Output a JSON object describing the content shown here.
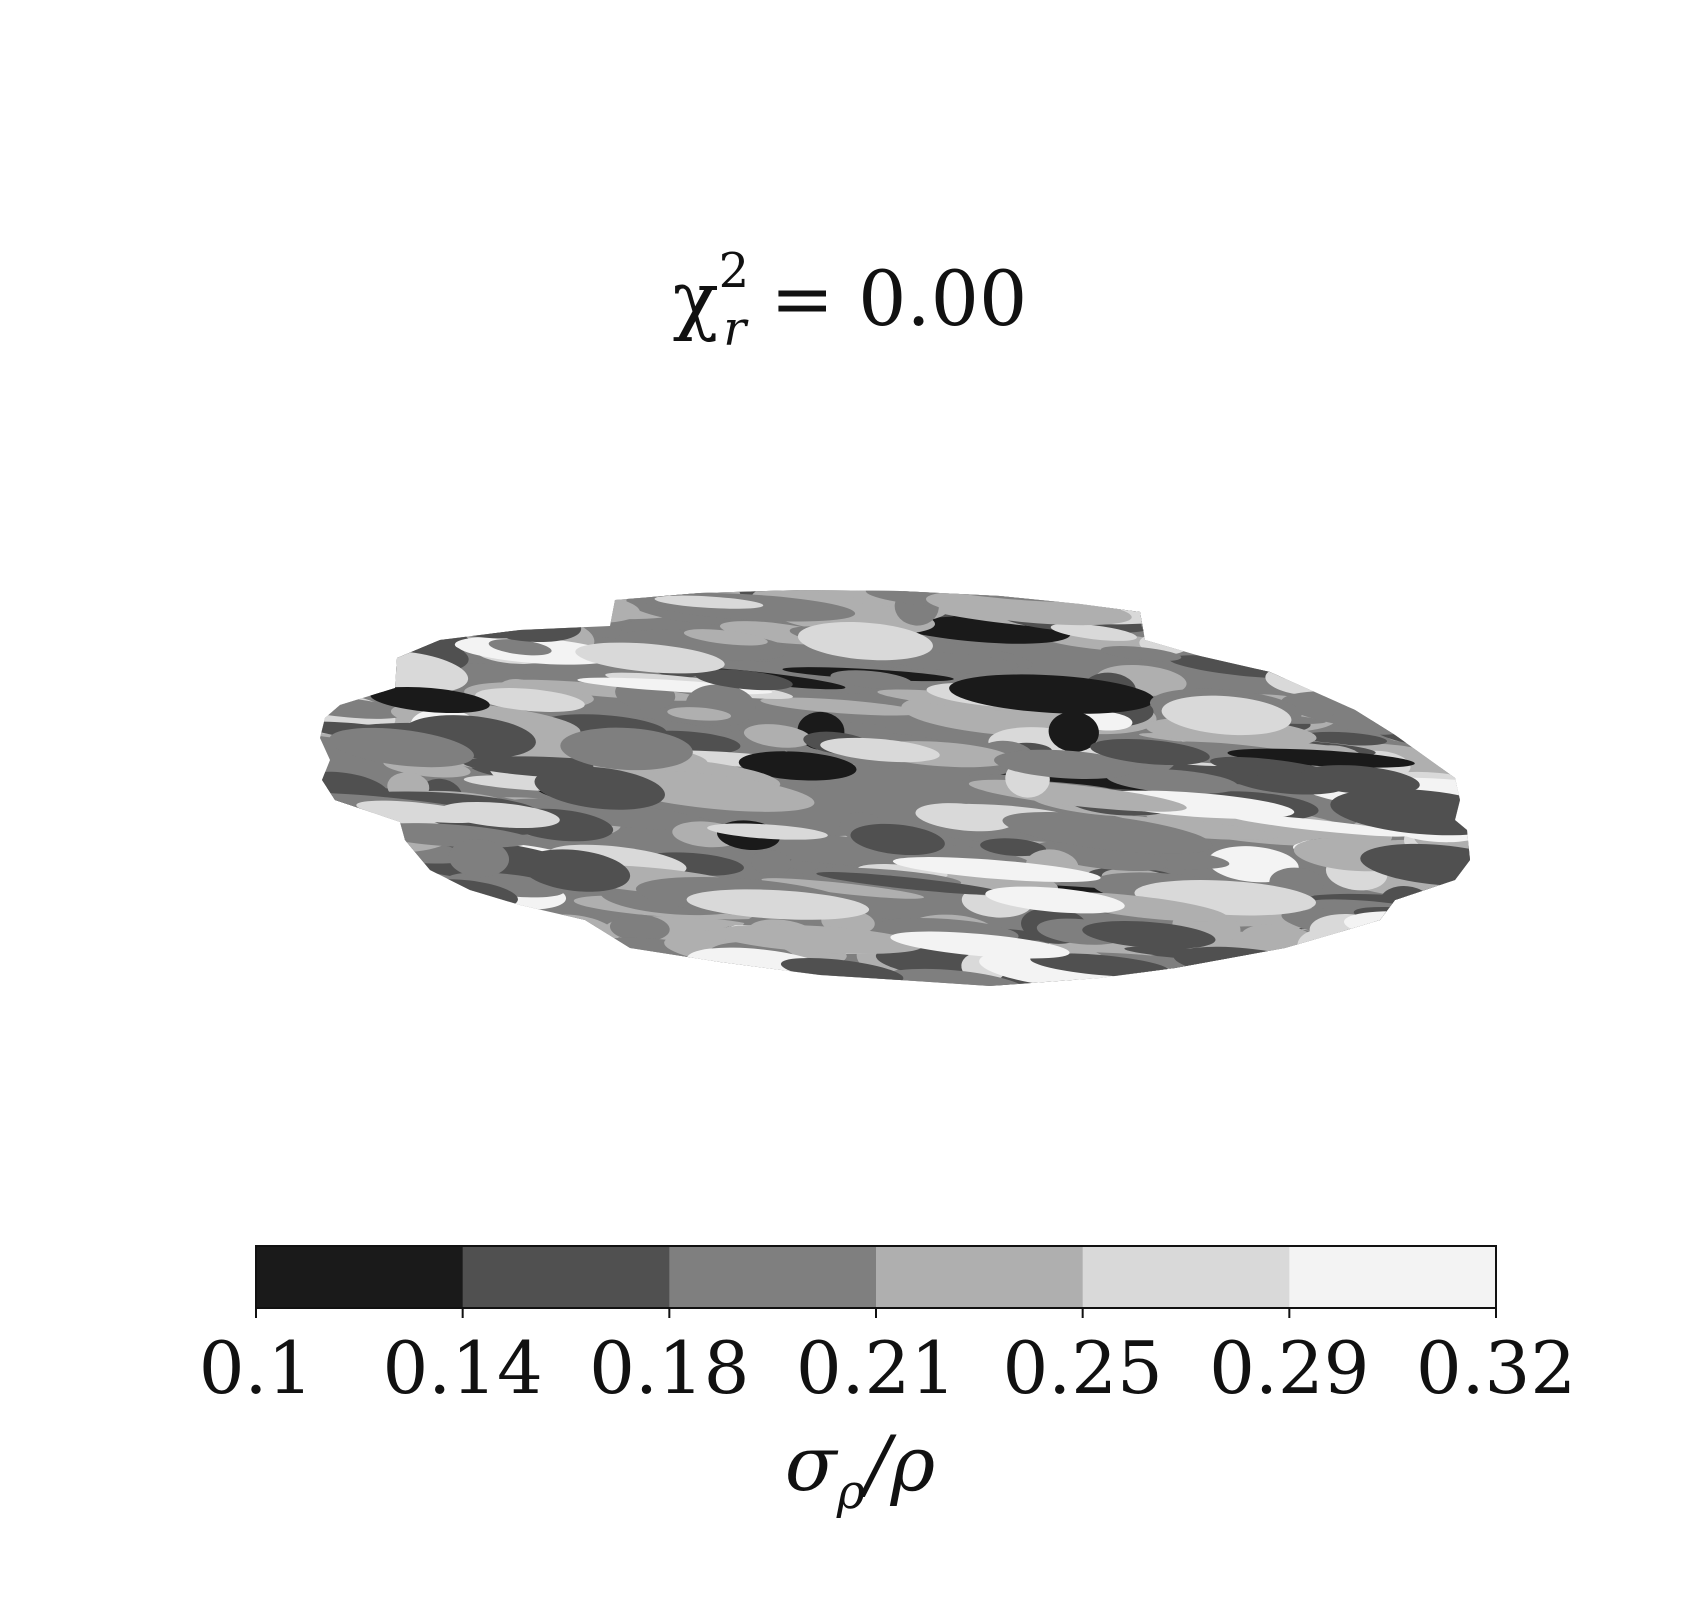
{
  "chart_data": {
    "type": "heatmap",
    "title": {
      "base": "χ",
      "sup": "2",
      "sub": "r",
      "rest": " = 0.00"
    },
    "colorbar": {
      "label": {
        "base": "σ",
        "sub": "ρ",
        "rest": "/ρ"
      },
      "ticks": [
        "0.1",
        "0.14",
        "0.18",
        "0.21",
        "0.25",
        "0.29",
        "0.32"
      ],
      "levels": [
        0.1,
        0.14,
        0.18,
        0.21,
        0.25,
        0.29,
        0.32
      ],
      "colors": [
        "#1a1a1a",
        "#505050",
        "#7f7f7f",
        "#afafaf",
        "#d9d9d9",
        "#f3f3f3"
      ]
    },
    "map": {
      "colormap": "grayscale",
      "axes_visible": false,
      "grid": false
    }
  }
}
